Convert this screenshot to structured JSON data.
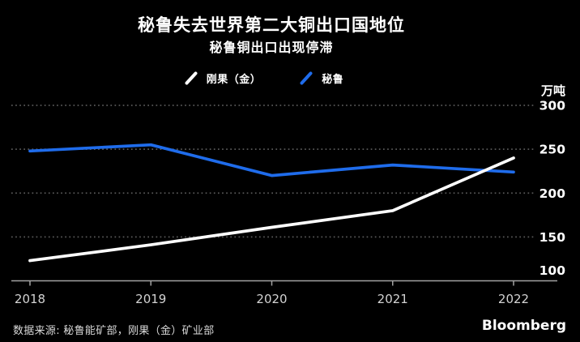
{
  "chart_data": {
    "type": "line",
    "title": "秘鲁失去世界第二大铜出口国地位",
    "subtitle": "秘鲁铜出口出现停滞",
    "unit_label": "万吨",
    "categories": [
      "2018",
      "2019",
      "2020",
      "2021",
      "2022"
    ],
    "series": [
      {
        "name": "刚果（金）",
        "color": "#ffffff",
        "values": [
          123,
          141,
          161,
          180,
          240
        ]
      },
      {
        "name": "秘鲁",
        "color": "#1f6ceb",
        "values": [
          248,
          255,
          220,
          232,
          224
        ]
      }
    ],
    "yticks": [
      100,
      150,
      200,
      250,
      300
    ],
    "ylim": [
      100,
      300
    ],
    "xlabel": "",
    "ylabel": "万吨",
    "legend_position": "top-center",
    "grid": "horizontal-dotted",
    "background": "#000000",
    "axis_color": "#a2a2a2",
    "gridline_color": "#575757"
  },
  "footer": {
    "source": "数据来源: 秘鲁能矿部，刚果（金）矿业部",
    "brand": "Bloomberg"
  }
}
